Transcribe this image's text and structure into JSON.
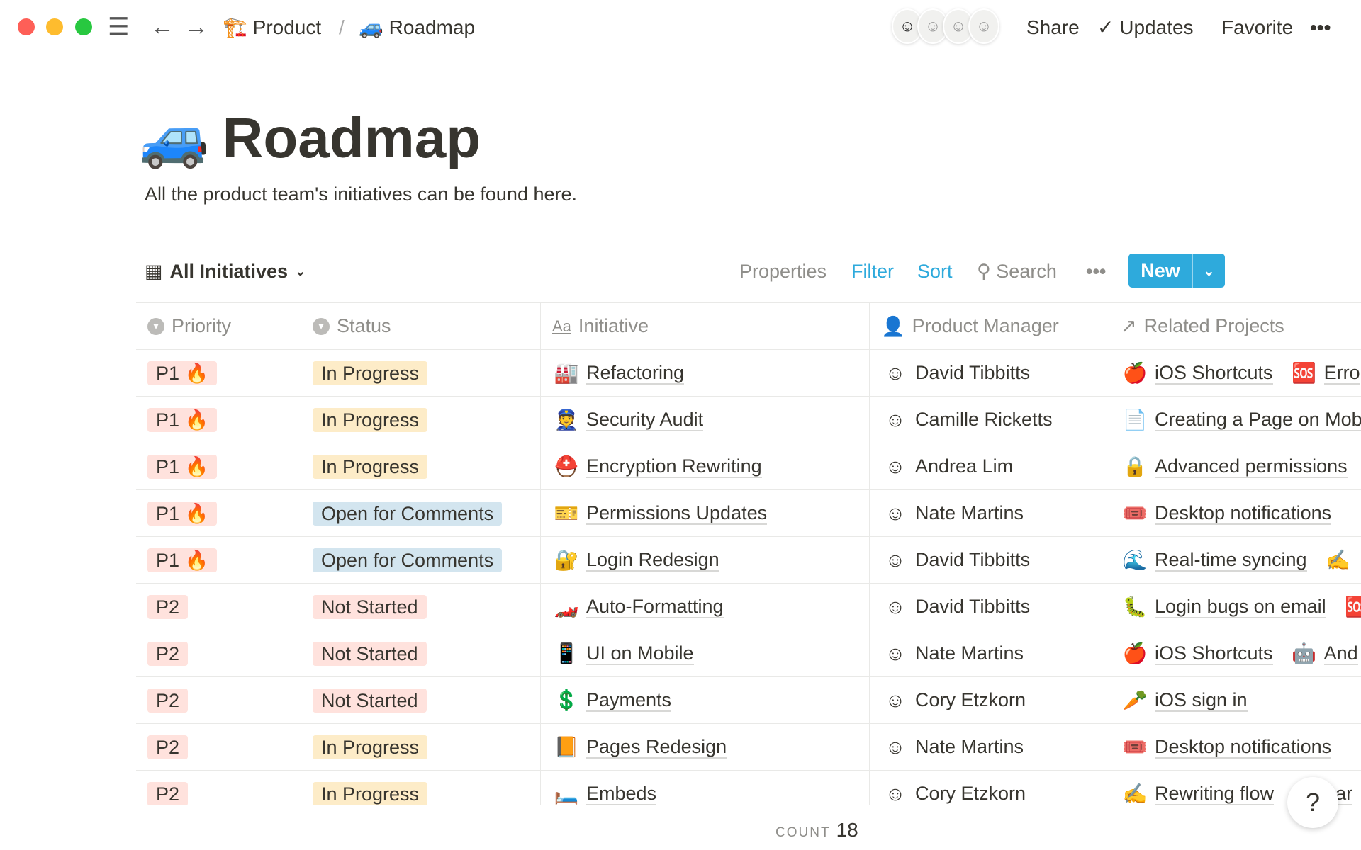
{
  "topbar": {
    "breadcrumb": [
      {
        "icon": "🏗️",
        "label": "Product"
      },
      {
        "icon": "🚙",
        "label": "Roadmap"
      }
    ],
    "separator": "/",
    "share": "Share",
    "updates": "Updates",
    "favorite": "Favorite",
    "more": "•••"
  },
  "page": {
    "icon": "🚙",
    "title": "Roadmap",
    "description": "All the product team's initiatives can be found here."
  },
  "toolbar": {
    "view": "All Initiatives",
    "properties": "Properties",
    "filter": "Filter",
    "sort": "Sort",
    "search": "Search",
    "more": "•••",
    "new": "New"
  },
  "columns": [
    "Priority",
    "Status",
    "Initiative",
    "Product Manager",
    "Related Projects"
  ],
  "rows": [
    {
      "priority": "P1 🔥",
      "status": "In Progress",
      "icon": "🏭",
      "initiative": "Refactoring",
      "pm": "David Tibbitts",
      "related": [
        {
          "icon": "🍎",
          "label": "iOS Shortcuts"
        },
        {
          "icon": "🆘",
          "label": "Erro"
        }
      ]
    },
    {
      "priority": "P1 🔥",
      "status": "In Progress",
      "icon": "👮",
      "initiative": "Security Audit",
      "pm": "Camille Ricketts",
      "related": [
        {
          "icon": "📄",
          "label": "Creating a Page on Mob"
        }
      ]
    },
    {
      "priority": "P1 🔥",
      "status": "In Progress",
      "icon": "⛑️",
      "initiative": "Encryption Rewriting",
      "pm": "Andrea Lim",
      "related": [
        {
          "icon": "🔒",
          "label": "Advanced permissions"
        }
      ]
    },
    {
      "priority": "P1 🔥",
      "status": "Open for Comments",
      "icon": "🎫",
      "initiative": "Permissions Updates",
      "pm": "Nate Martins",
      "related": [
        {
          "icon": "🎟️",
          "label": "Desktop notifications"
        }
      ]
    },
    {
      "priority": "P1 🔥",
      "status": "Open for Comments",
      "icon": "🔐",
      "initiative": "Login Redesign",
      "pm": "David Tibbitts",
      "related": [
        {
          "icon": "🌊",
          "label": "Real-time syncing"
        },
        {
          "icon": "✍️",
          "label": ""
        }
      ]
    },
    {
      "priority": "P2",
      "status": "Not Started",
      "icon": "🏎️",
      "initiative": "Auto-Formatting",
      "pm": "David Tibbitts",
      "related": [
        {
          "icon": "🐛",
          "label": "Login bugs on email"
        },
        {
          "icon": "🆘",
          "label": ""
        }
      ]
    },
    {
      "priority": "P2",
      "status": "Not Started",
      "icon": "📱",
      "initiative": "UI on Mobile",
      "pm": "Nate Martins",
      "related": [
        {
          "icon": "🍎",
          "label": "iOS Shortcuts"
        },
        {
          "icon": "🤖",
          "label": "And"
        }
      ]
    },
    {
      "priority": "P2",
      "status": "Not Started",
      "icon": "💲",
      "initiative": "Payments",
      "pm": "Cory Etzkorn",
      "related": [
        {
          "icon": "🥕",
          "label": "iOS sign in"
        }
      ]
    },
    {
      "priority": "P2",
      "status": "In Progress",
      "icon": "📙",
      "initiative": "Pages Redesign",
      "pm": "Nate Martins",
      "related": [
        {
          "icon": "🎟️",
          "label": "Desktop notifications"
        }
      ]
    },
    {
      "priority": "P2",
      "status": "In Progress",
      "icon": "🛏️",
      "initiative": "Embeds",
      "pm": "Cory Etzkorn",
      "related": [
        {
          "icon": "✍️",
          "label": "Rewriting flow"
        },
        {
          "icon": "",
          "label": "Lar"
        }
      ]
    }
  ],
  "footer": {
    "count_label": "COUNT",
    "count": "18",
    "help": "?"
  }
}
